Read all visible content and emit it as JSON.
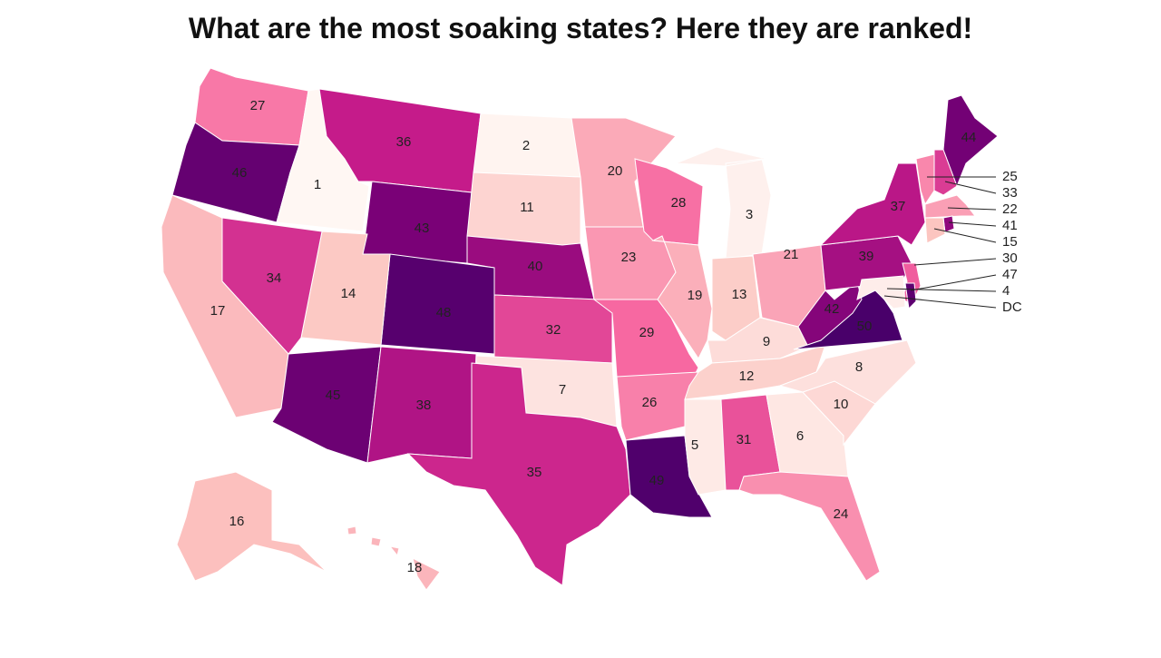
{
  "title": "What are the most soaking states? Here they are ranked!",
  "map": {
    "type": "choropleth",
    "color_domain": [
      1,
      50
    ],
    "colors": [
      "#fff7f3",
      "#fde0dd",
      "#fcc5c0",
      "#fa9fb5",
      "#f768a1",
      "#c51b8a",
      "#7a0177",
      "#49006a"
    ],
    "values": [
      27,
      46,
      1,
      36,
      43,
      2,
      11,
      40,
      48,
      14,
      34,
      17,
      45,
      38,
      32,
      7,
      35,
      20,
      23,
      29,
      26,
      49,
      28,
      19,
      3,
      13,
      21,
      9,
      12,
      5,
      31,
      6,
      24,
      10,
      8,
      50,
      42,
      39,
      37,
      44,
      16,
      18,
      25,
      33,
      22,
      41,
      15,
      30,
      47,
      4
    ],
    "dc_label": "DC"
  }
}
